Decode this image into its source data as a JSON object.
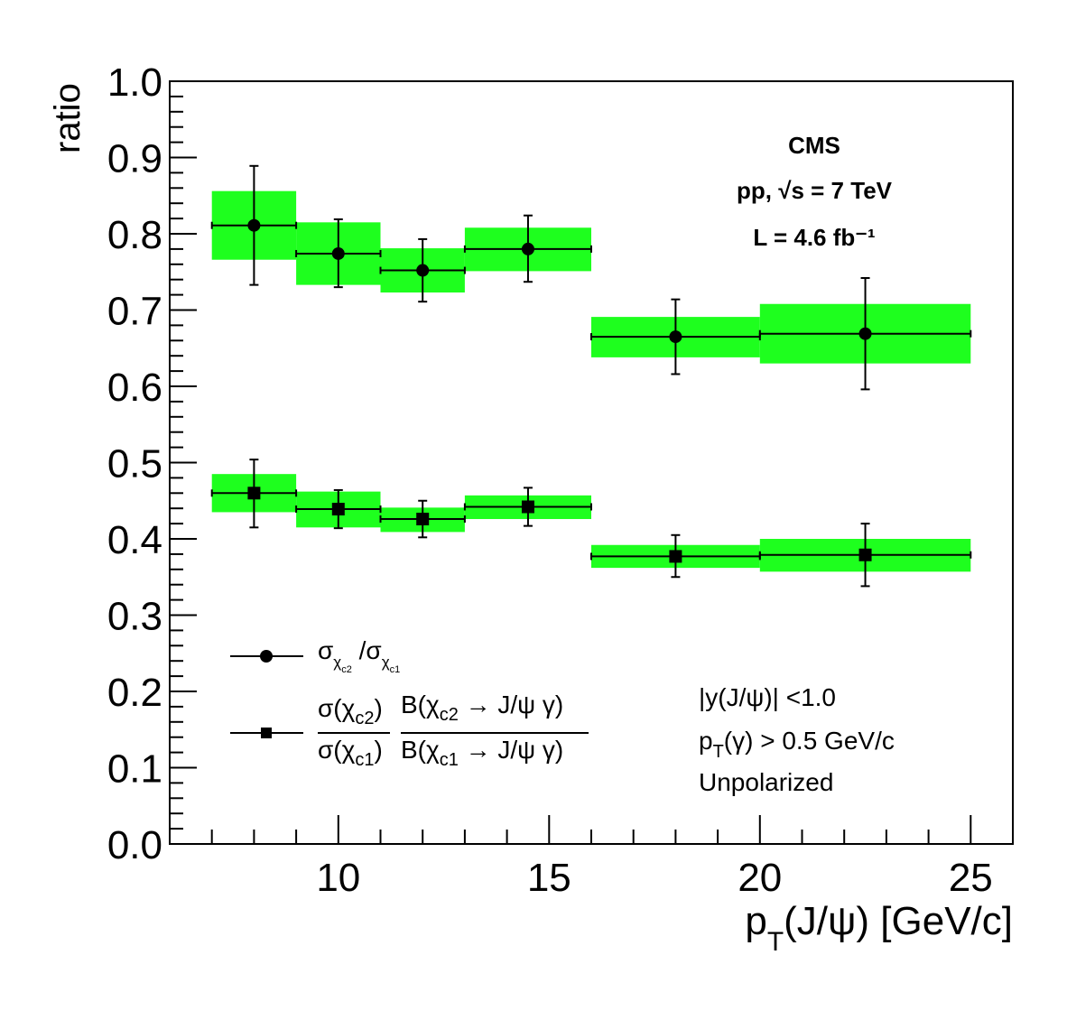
{
  "chart_data": {
    "type": "scatter",
    "xlabel": "p_T(J/ψ) [GeV/c]",
    "ylabel": "ratio",
    "xlim": [
      6,
      26
    ],
    "ylim": [
      0.0,
      1.0
    ],
    "x_ticks": [
      10,
      15,
      20,
      25
    ],
    "y_ticks": [
      "0.0",
      "0.1",
      "0.2",
      "0.3",
      "0.4",
      "0.5",
      "0.6",
      "0.7",
      "0.8",
      "0.9",
      "1.0"
    ],
    "series": [
      {
        "name": "σ_χc2/σ_χc1",
        "marker": "circle",
        "points": [
          {
            "x": 8.0,
            "xlo": 7,
            "xhi": 9,
            "y": 0.811,
            "stat_lo": 0.733,
            "stat_hi": 0.889,
            "sys_lo": 0.766,
            "sys_hi": 0.856
          },
          {
            "x": 10.0,
            "xlo": 9,
            "xhi": 11,
            "y": 0.774,
            "stat_lo": 0.73,
            "stat_hi": 0.819,
            "sys_lo": 0.733,
            "sys_hi": 0.815
          },
          {
            "x": 12.0,
            "xlo": 11,
            "xhi": 13,
            "y": 0.752,
            "stat_lo": 0.711,
            "stat_hi": 0.793,
            "sys_lo": 0.723,
            "sys_hi": 0.781
          },
          {
            "x": 14.5,
            "xlo": 13,
            "xhi": 16,
            "y": 0.78,
            "stat_lo": 0.737,
            "stat_hi": 0.824,
            "sys_lo": 0.751,
            "sys_hi": 0.808
          },
          {
            "x": 18.0,
            "xlo": 16,
            "xhi": 20,
            "y": 0.665,
            "stat_lo": 0.616,
            "stat_hi": 0.714,
            "sys_lo": 0.638,
            "sys_hi": 0.691
          },
          {
            "x": 22.5,
            "xlo": 20,
            "xhi": 25,
            "y": 0.669,
            "stat_lo": 0.596,
            "stat_hi": 0.742,
            "sys_lo": 0.63,
            "sys_hi": 0.708
          }
        ]
      },
      {
        "name": "σ(χc2)B(χc2→J/ψγ) / σ(χc1)B(χc1→J/ψγ)",
        "marker": "square",
        "points": [
          {
            "x": 8.0,
            "xlo": 7,
            "xhi": 9,
            "y": 0.46,
            "stat_lo": 0.415,
            "stat_hi": 0.504,
            "sys_lo": 0.435,
            "sys_hi": 0.485
          },
          {
            "x": 10.0,
            "xlo": 9,
            "xhi": 11,
            "y": 0.439,
            "stat_lo": 0.414,
            "stat_hi": 0.464,
            "sys_lo": 0.415,
            "sys_hi": 0.462
          },
          {
            "x": 12.0,
            "xlo": 11,
            "xhi": 13,
            "y": 0.426,
            "stat_lo": 0.402,
            "stat_hi": 0.45,
            "sys_lo": 0.409,
            "sys_hi": 0.441
          },
          {
            "x": 14.5,
            "xlo": 13,
            "xhi": 16,
            "y": 0.442,
            "stat_lo": 0.417,
            "stat_hi": 0.467,
            "sys_lo": 0.426,
            "sys_hi": 0.457
          },
          {
            "x": 18.0,
            "xlo": 16,
            "xhi": 20,
            "y": 0.377,
            "stat_lo": 0.35,
            "stat_hi": 0.405,
            "sys_lo": 0.362,
            "sys_hi": 0.392
          },
          {
            "x": 22.5,
            "xlo": 20,
            "xhi": 25,
            "y": 0.379,
            "stat_lo": 0.338,
            "stat_hi": 0.42,
            "sys_lo": 0.357,
            "sys_hi": 0.4
          }
        ]
      }
    ],
    "colors": {
      "sys_band": "#1eff1e",
      "markers": "#000000"
    },
    "annotations": {
      "experiment": "CMS",
      "energy": "pp, √s = 7 TeV",
      "lumi": "L = 4.6 fb⁻¹",
      "cut_rapidity": "|y(J/ψ)| <1.0",
      "cut_photon": "p_T(γ) > 0.5 GeV/c",
      "polarization": "Unpolarized"
    },
    "legend_position": "bottom-left"
  }
}
